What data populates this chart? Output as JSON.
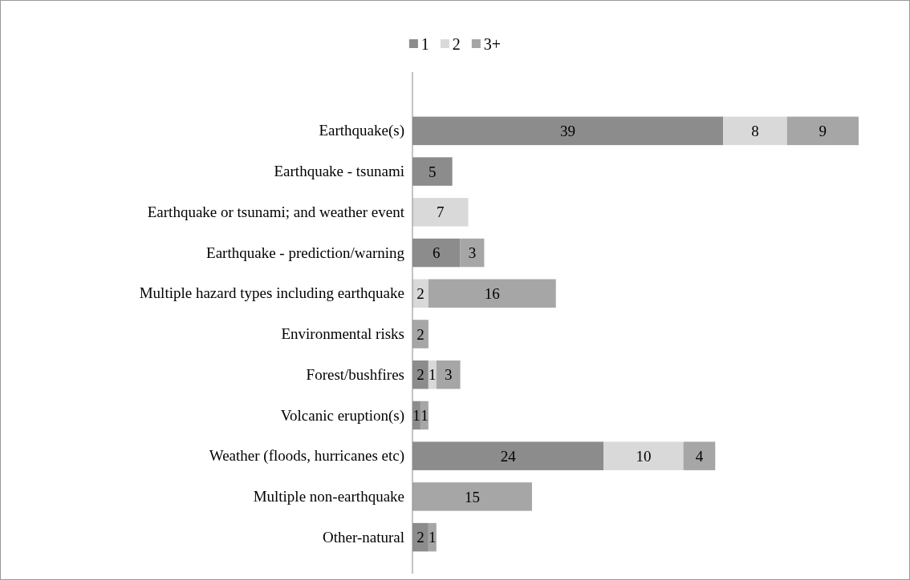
{
  "chart_data": {
    "type": "bar",
    "orientation": "horizontal",
    "stacked": true,
    "data_labels": true,
    "legend": "top",
    "grid": false,
    "categories": [
      "Earthquake(s)",
      "Earthquake - tsunami",
      "Earthquake or tsunami; and weather event",
      "Earthquake - prediction/warning",
      "Multiple hazard types including earthquake",
      "Environmental risks",
      "Forest/bushfires",
      "Volcanic eruption(s)",
      "Weather (floods, hurricanes etc)",
      "Multiple non-earthquake",
      "Other-natural"
    ],
    "series": [
      {
        "name": "1",
        "color": "#8c8c8c",
        "values": [
          39,
          5,
          null,
          6,
          null,
          null,
          2,
          1,
          24,
          null,
          2
        ]
      },
      {
        "name": "2",
        "color": "#d9d9d9",
        "values": [
          8,
          null,
          7,
          null,
          2,
          null,
          1,
          null,
          10,
          null,
          null
        ]
      },
      {
        "name": "3+",
        "color": "#a6a6a6",
        "values": [
          9,
          null,
          null,
          3,
          16,
          2,
          3,
          1,
          4,
          15,
          1
        ]
      }
    ]
  }
}
